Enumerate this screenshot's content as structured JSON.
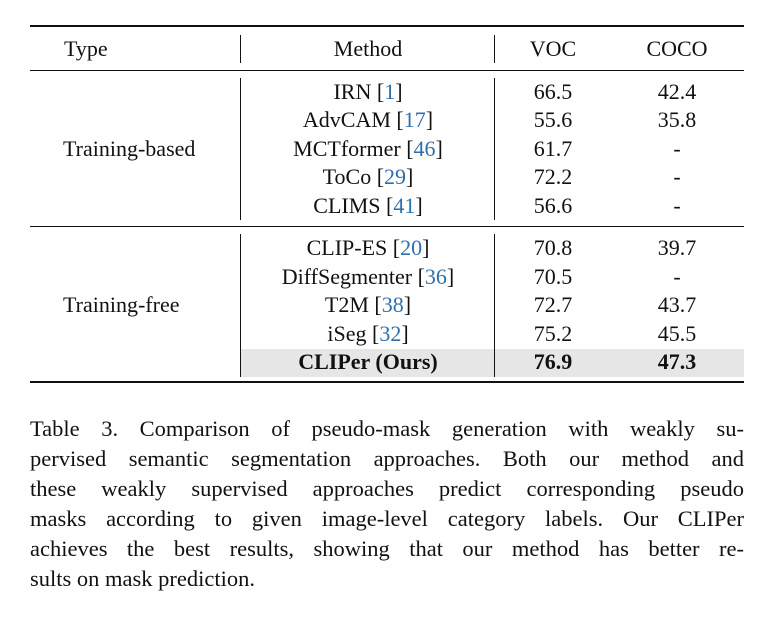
{
  "table": {
    "headers": {
      "type": "Type",
      "method": "Method",
      "voc": "VOC",
      "coco": "COCO"
    },
    "groups": [
      {
        "type": "Training-based",
        "rows": [
          {
            "method": "IRN",
            "ref": "1",
            "voc": "66.5",
            "coco": "42.4"
          },
          {
            "method": "AdvCAM",
            "ref": "17",
            "voc": "55.6",
            "coco": "35.8"
          },
          {
            "method": "MCTformer",
            "ref": "46",
            "voc": "61.7",
            "coco": "-"
          },
          {
            "method": "ToCo",
            "ref": "29",
            "voc": "72.2",
            "coco": "-"
          },
          {
            "method": "CLIMS",
            "ref": "41",
            "voc": "56.6",
            "coco": "-"
          }
        ]
      },
      {
        "type": "Training-free",
        "rows": [
          {
            "method": "CLIP-ES",
            "ref": "20",
            "voc": "70.8",
            "coco": "39.7"
          },
          {
            "method": "DiffSegmenter",
            "ref": "36",
            "voc": "70.5",
            "coco": "-"
          },
          {
            "method": "T2M",
            "ref": "38",
            "voc": "72.7",
            "coco": "43.7"
          },
          {
            "method": "iSeg",
            "ref": "32",
            "voc": "75.2",
            "coco": "45.5"
          },
          {
            "method": "CLIPer (Ours)",
            "ref": "",
            "voc": "76.9",
            "coco": "47.3"
          }
        ]
      }
    ]
  },
  "caption": {
    "lines": [
      "Table 3. Comparison of pseudo-mask generation with weakly su-",
      "pervised semantic segmentation approaches. Both our method and",
      "these weakly supervised approaches predict corresponding pseudo",
      "masks according to given image-level category labels. Our CLIPer",
      "achieves the best results, showing that our method has better re-",
      "sults on mask prediction."
    ]
  }
}
